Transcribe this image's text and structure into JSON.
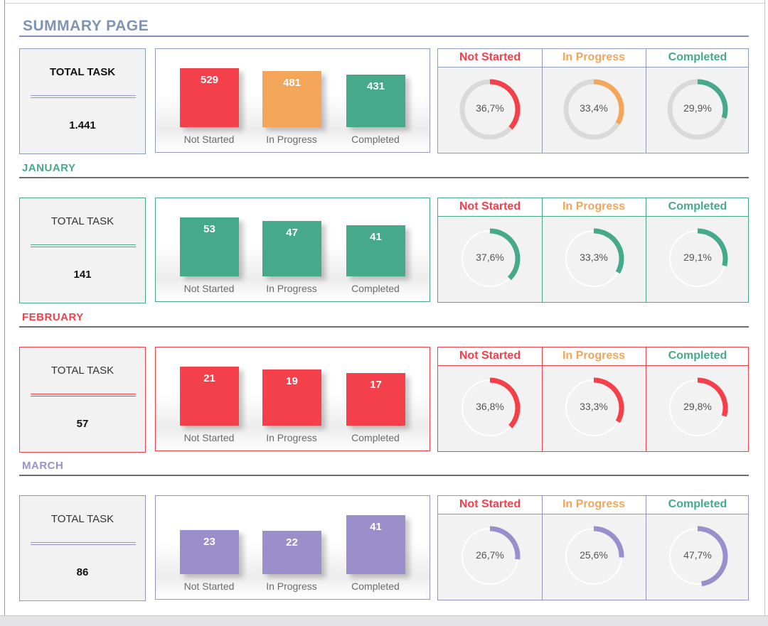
{
  "page_title": "SUMMARY PAGE",
  "colors": {
    "title_blue": "#7f93b5",
    "not_started": "#f4404a",
    "in_progress": "#f3a65a",
    "completed": "#45a98a",
    "january": "#45a98a",
    "february": "#f4404a",
    "march": "#9b8fcb",
    "summary_border": "#8f9bbf"
  },
  "column_headers": [
    "Not Started",
    "In Progress",
    "Completed"
  ],
  "sections": [
    {
      "title": "",
      "total_label": "TOTAL TASK",
      "total_value": "1.441",
      "categories": [
        "Not Started",
        "In Progress",
        "Completed"
      ],
      "values": [
        529,
        481,
        431
      ],
      "percents": [
        "36,7%",
        "33,4%",
        "29,9%"
      ],
      "fractions": [
        0.367,
        0.334,
        0.299
      ]
    },
    {
      "title": "JANUARY",
      "total_label": "TOTAL TASK",
      "total_value": "141",
      "categories": [
        "Not Started",
        "In Progress",
        "Completed"
      ],
      "values": [
        53,
        47,
        41
      ],
      "percents": [
        "37,6%",
        "33,3%",
        "29,1%"
      ],
      "fractions": [
        0.376,
        0.333,
        0.291
      ]
    },
    {
      "title": "FEBRUARY",
      "total_label": "TOTAL TASK",
      "total_value": "57",
      "categories": [
        "Not Started",
        "In Progress",
        "Completed"
      ],
      "values": [
        21,
        19,
        17
      ],
      "percents": [
        "36,8%",
        "33,3%",
        "29,8%"
      ],
      "fractions": [
        0.368,
        0.333,
        0.298
      ]
    },
    {
      "title": "MARCH",
      "total_label": "TOTAL TASK",
      "total_value": "86",
      "categories": [
        "Not Started",
        "In Progress",
        "Completed"
      ],
      "values": [
        23,
        22,
        41
      ],
      "percents": [
        "26,7%",
        "25,6%",
        "47,7%"
      ],
      "fractions": [
        0.267,
        0.256,
        0.477
      ]
    }
  ]
}
